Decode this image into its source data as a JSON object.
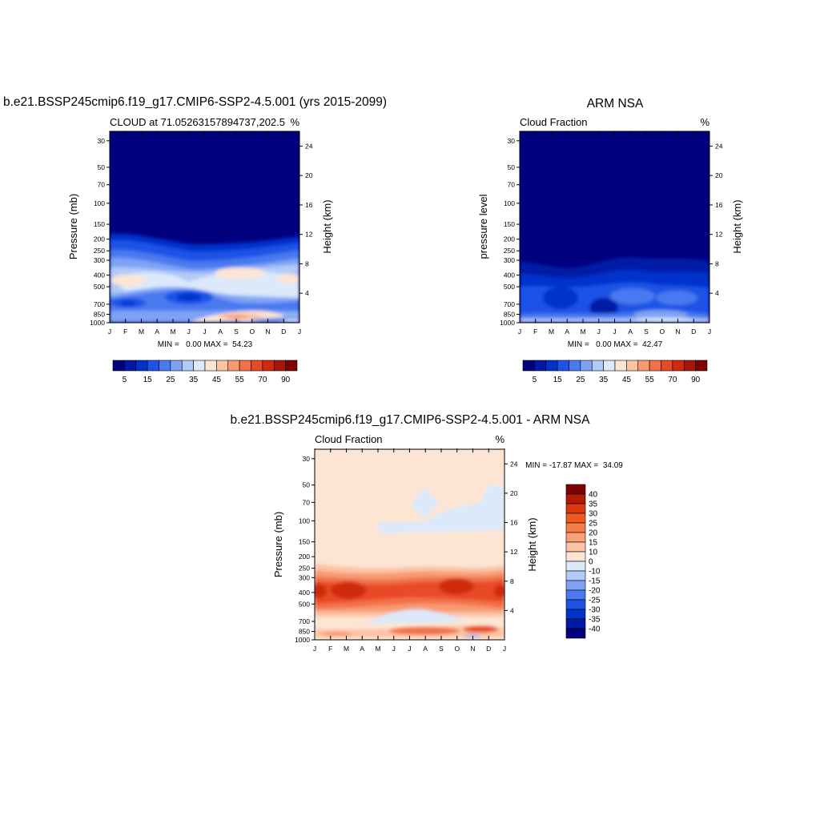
{
  "page_title": "b.e21.BSSP245cmip6.f19_g17.CMIP6-SSP2-4.5.001 (yrs 2015-2099)",
  "panels": {
    "model": {
      "title": "",
      "subtitle_left": "CLOUD at 71.05263157894737,202.5",
      "subtitle_right": "%",
      "ylabel_left": "Pressure (mb)",
      "ylabel_right": "Height (km)",
      "stats": "MIN =   0.00 MAX =  54.23"
    },
    "obs": {
      "title": "ARM NSA",
      "subtitle_left": "Cloud Fraction",
      "subtitle_right": "%",
      "ylabel_left": "pressure level",
      "ylabel_right": "Height (km)",
      "stats": "MIN =   0.00 MAX =  42.47"
    },
    "diff": {
      "title": "b.e21.BSSP245cmip6.f19_g17.CMIP6-SSP2-4.5.001 - ARM NSA",
      "subtitle_left": "Cloud Fraction",
      "subtitle_right": "%",
      "ylabel_left": "Pressure (mb)",
      "ylabel_right": "Height (km)",
      "stats": "MIN = -17.87 MAX =  34.09"
    }
  },
  "chart_data": [
    {
      "type": "heatmap",
      "panel": "model",
      "x_tick_labels": [
        "J",
        "F",
        "M",
        "A",
        "M",
        "J",
        "J",
        "A",
        "S",
        "O",
        "N",
        "D",
        "J"
      ],
      "y_ticks_pressure": [
        30,
        50,
        70,
        100,
        150,
        200,
        250,
        300,
        400,
        500,
        700,
        850,
        1000
      ],
      "y_ticks_height_km": [
        24,
        20,
        16,
        12,
        8,
        4
      ],
      "colorbar_labels": [
        "5",
        "15",
        "25",
        "35",
        "45",
        "55",
        "70",
        "90"
      ],
      "colorbar_colors": [
        "#00007f",
        "#001aa6",
        "#0033cc",
        "#1f53e6",
        "#4a79f0",
        "#7ea3f5",
        "#b1caf7",
        "#dbe9fb",
        "#fde5d3",
        "#fcc3a5",
        "#f89a72",
        "#f2714a",
        "#e84a26",
        "#cf2a0e",
        "#a81606",
        "#7f0000"
      ],
      "ylim_pressure": [
        1000,
        25
      ]
    },
    {
      "type": "heatmap",
      "panel": "obs",
      "x_tick_labels": [
        "J",
        "F",
        "M",
        "A",
        "M",
        "J",
        "J",
        "A",
        "S",
        "O",
        "N",
        "D",
        "J"
      ],
      "y_ticks_pressure": [
        30,
        50,
        70,
        100,
        150,
        200,
        250,
        300,
        400,
        500,
        700,
        850,
        1000
      ],
      "y_ticks_height_km": [
        24,
        20,
        16,
        12,
        8,
        4
      ],
      "colorbar_labels": [
        "5",
        "15",
        "25",
        "35",
        "45",
        "55",
        "70",
        "90"
      ],
      "colorbar_colors": [
        "#00007f",
        "#001aa6",
        "#0033cc",
        "#1f53e6",
        "#4a79f0",
        "#7ea3f5",
        "#b1caf7",
        "#dbe9fb",
        "#fde5d3",
        "#fcc3a5",
        "#f89a72",
        "#f2714a",
        "#e84a26",
        "#cf2a0e",
        "#a81606",
        "#7f0000"
      ],
      "ylim_pressure": [
        1000,
        25
      ]
    },
    {
      "type": "heatmap",
      "panel": "diff",
      "x_tick_labels": [
        "J",
        "F",
        "M",
        "A",
        "M",
        "J",
        "J",
        "A",
        "S",
        "O",
        "N",
        "D",
        "J"
      ],
      "y_ticks_pressure": [
        30,
        50,
        70,
        100,
        150,
        200,
        250,
        300,
        400,
        500,
        700,
        850,
        1000
      ],
      "y_ticks_height_km": [
        24,
        20,
        16,
        12,
        8,
        4
      ],
      "colorbar_labels": [
        "40",
        "35",
        "30",
        "25",
        "20",
        "15",
        "10",
        "0",
        "-10",
        "-15",
        "-20",
        "-25",
        "-30",
        "-35",
        "-40"
      ],
      "colorbar_colors": [
        "#7f0000",
        "#b31a04",
        "#d83a0d",
        "#ef5a1f",
        "#f77c45",
        "#f9a077",
        "#fbc3a3",
        "#fde5d3",
        "#dbe9fb",
        "#b1caf7",
        "#7ea3f5",
        "#4a79f0",
        "#1f53e6",
        "#0033cc",
        "#001aa6",
        "#00007f"
      ],
      "ylim_pressure": [
        1000,
        25
      ]
    }
  ]
}
